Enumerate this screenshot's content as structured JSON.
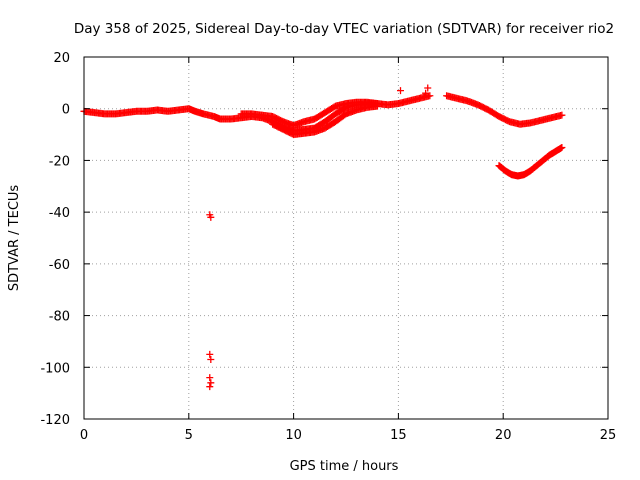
{
  "chart_data": {
    "type": "scatter",
    "title": "Day 358 of 2025, Sidereal Day-to-day VTEC variation (SDTVAR) for receiver rio2",
    "xlabel": "GPS time / hours",
    "ylabel": "SDTVAR / TECUs",
    "xlim": [
      0,
      25
    ],
    "ylim": [
      -120,
      20
    ],
    "xticks": [
      0,
      5,
      10,
      15,
      20,
      25
    ],
    "yticks": [
      20,
      0,
      -20,
      -40,
      -60,
      -80,
      -100,
      -120
    ],
    "grid": true,
    "marker": "plus",
    "marker_color": "#ff0000",
    "series": [
      {
        "name": "main-track",
        "points": [
          [
            0.0,
            -1.0
          ],
          [
            0.5,
            -1.5
          ],
          [
            1.0,
            -2.0
          ],
          [
            1.5,
            -2.0
          ],
          [
            2.0,
            -1.5
          ],
          [
            2.5,
            -1.0
          ],
          [
            3.0,
            -1.0
          ],
          [
            3.5,
            -0.5
          ],
          [
            4.0,
            -1.0
          ],
          [
            4.5,
            -0.5
          ],
          [
            5.0,
            0.0
          ],
          [
            5.3,
            -1.0
          ],
          [
            5.7,
            -2.0
          ],
          [
            6.2,
            -3.0
          ],
          [
            6.5,
            -4.0
          ],
          [
            7.0,
            -4.0
          ],
          [
            7.5,
            -3.5
          ],
          [
            8.0,
            -3.0
          ],
          [
            8.5,
            -3.5
          ],
          [
            9.0,
            -5.0
          ],
          [
            9.5,
            -7.0
          ],
          [
            10.0,
            -8.5
          ],
          [
            10.5,
            -8.0
          ],
          [
            11.0,
            -7.5
          ],
          [
            11.5,
            -5.0
          ],
          [
            12.0,
            -2.0
          ],
          [
            12.5,
            0.5
          ],
          [
            13.0,
            1.5
          ],
          [
            13.5,
            2.0
          ],
          [
            14.0,
            2.0
          ],
          [
            14.5,
            1.5
          ],
          [
            15.0,
            2.0
          ],
          [
            15.5,
            3.0
          ],
          [
            16.0,
            4.0
          ],
          [
            16.5,
            5.0
          ]
        ]
      },
      {
        "name": "upper-branch",
        "points": [
          [
            7.5,
            -2.0
          ],
          [
            8.0,
            -2.0
          ],
          [
            8.5,
            -2.5
          ],
          [
            9.0,
            -3.0
          ],
          [
            9.5,
            -5.0
          ],
          [
            10.0,
            -6.5
          ],
          [
            10.5,
            -5.0
          ],
          [
            11.0,
            -4.0
          ],
          [
            11.5,
            -1.5
          ],
          [
            12.0,
            1.0
          ],
          [
            12.5,
            2.0
          ],
          [
            13.0,
            2.5
          ],
          [
            13.5,
            2.5
          ],
          [
            14.0,
            2.0
          ]
        ]
      },
      {
        "name": "lower-branch",
        "points": [
          [
            9.0,
            -6.0
          ],
          [
            9.5,
            -8.0
          ],
          [
            10.0,
            -10.0
          ],
          [
            10.5,
            -9.5
          ],
          [
            11.0,
            -9.0
          ],
          [
            11.5,
            -7.5
          ],
          [
            12.0,
            -5.0
          ],
          [
            12.5,
            -2.0
          ],
          [
            13.0,
            -0.5
          ],
          [
            13.5,
            0.5
          ],
          [
            14.0,
            1.0
          ]
        ]
      },
      {
        "name": "evening-track",
        "points": [
          [
            17.3,
            5.0
          ],
          [
            17.8,
            4.0
          ],
          [
            18.3,
            3.0
          ],
          [
            18.8,
            1.5
          ],
          [
            19.3,
            -0.5
          ],
          [
            19.8,
            -3.0
          ],
          [
            20.3,
            -5.0
          ],
          [
            20.8,
            -6.0
          ],
          [
            21.3,
            -5.5
          ],
          [
            21.8,
            -4.5
          ],
          [
            22.3,
            -3.5
          ],
          [
            22.8,
            -2.5
          ]
        ]
      },
      {
        "name": "negative-arc",
        "points": [
          [
            19.8,
            -22.0
          ],
          [
            20.1,
            -24.0
          ],
          [
            20.4,
            -25.5
          ],
          [
            20.7,
            -26.0
          ],
          [
            21.0,
            -25.5
          ],
          [
            21.3,
            -24.0
          ],
          [
            21.6,
            -22.0
          ],
          [
            21.9,
            -20.0
          ],
          [
            22.2,
            -18.0
          ],
          [
            22.5,
            -16.5
          ],
          [
            22.8,
            -15.0
          ]
        ]
      },
      {
        "name": "outliers",
        "points": [
          [
            6.0,
            -41.0
          ],
          [
            6.05,
            -42.0
          ],
          [
            6.0,
            -95.0
          ],
          [
            6.05,
            -97.0
          ],
          [
            6.0,
            -104.0
          ],
          [
            6.05,
            -106.0
          ],
          [
            6.0,
            -107.5
          ],
          [
            15.1,
            7.0
          ],
          [
            16.4,
            8.0
          ],
          [
            16.3,
            6.0
          ]
        ]
      }
    ]
  }
}
